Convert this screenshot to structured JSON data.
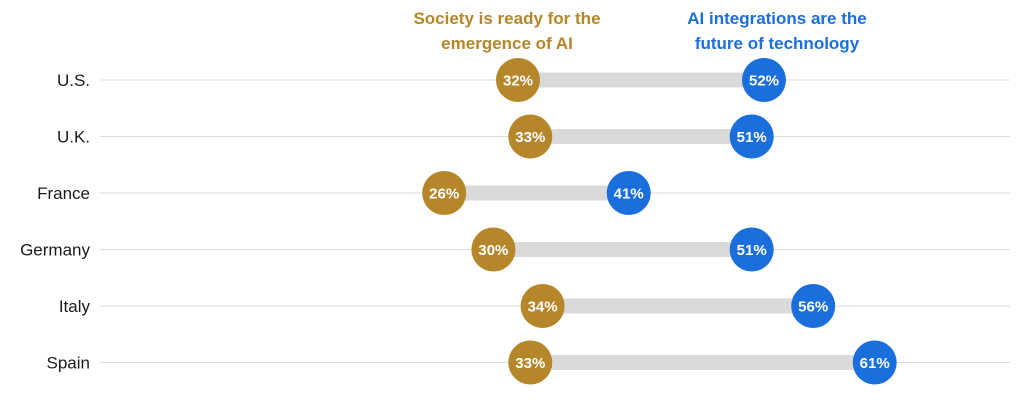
{
  "chart_data": {
    "type": "dumbbell",
    "title": "",
    "xlabel": "",
    "ylabel": "",
    "xlim": [
      0,
      100
    ],
    "value_suffix": "%",
    "grid": "horizontal row lines",
    "legend_position": "top",
    "categories": [
      "U.S.",
      "U.K.",
      "France",
      "Germany",
      "Italy",
      "Spain"
    ],
    "series": [
      {
        "name": "Society is ready for the emergence of AI",
        "legend_lines": [
          "Society is ready for the",
          "emergence of AI"
        ],
        "color": "#b5862a",
        "values": [
          32,
          33,
          26,
          30,
          34,
          33
        ],
        "labels": [
          "32%",
          "33%",
          "26%",
          "30%",
          "34%",
          "33%"
        ]
      },
      {
        "name": "AI integrations are the future of technology",
        "legend_lines": [
          "AI integrations are the",
          "future of technology"
        ],
        "color": "#1a6fdc",
        "values": [
          52,
          51,
          41,
          51,
          56,
          61
        ],
        "labels": [
          "52%",
          "51%",
          "41%",
          "51%",
          "56%",
          "61%"
        ]
      }
    ]
  }
}
